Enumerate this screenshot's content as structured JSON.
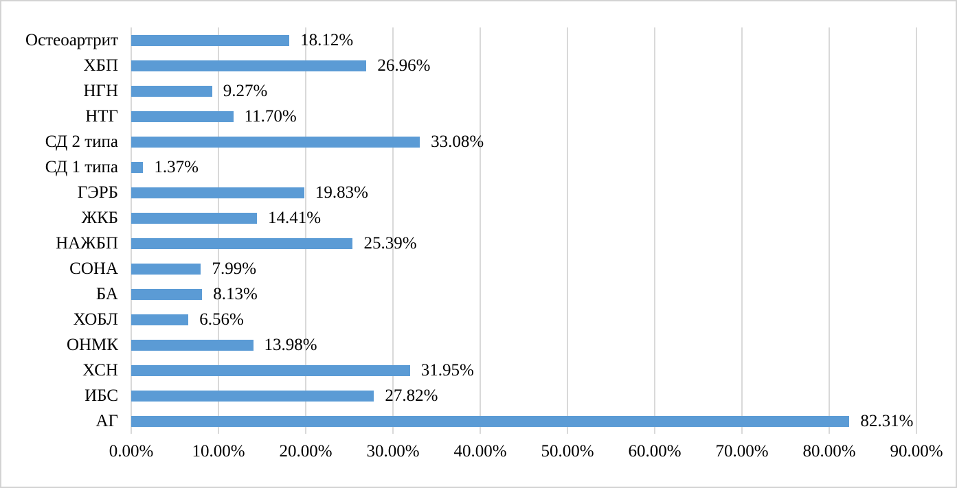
{
  "chart_data": {
    "type": "bar",
    "orientation": "horizontal",
    "title": "",
    "xlabel": "",
    "ylabel": "",
    "categories_order": "top-to-bottom",
    "categories": [
      "Остеоартрит",
      "ХБП",
      "НГН",
      "НТГ",
      "СД 2 типа",
      "СД 1 типа",
      "ГЭРБ",
      "ЖКБ",
      "НАЖБП",
      "СОНА",
      "БА",
      "ХОБЛ",
      "ОНМК",
      "ХСН",
      "ИБС",
      "АГ"
    ],
    "values": [
      18.12,
      26.96,
      9.27,
      11.7,
      33.08,
      1.37,
      19.83,
      14.41,
      25.39,
      7.99,
      8.13,
      6.56,
      13.98,
      31.95,
      27.82,
      82.31
    ],
    "data_labels": [
      "18.12%",
      "26.96%",
      "9.27%",
      "11.70%",
      "33.08%",
      "1.37%",
      "19.83%",
      "14.41%",
      "25.39%",
      "7.99%",
      "8.13%",
      "6.56%",
      "13.98%",
      "31.95%",
      "27.82%",
      "82.31%"
    ],
    "xlim": [
      0,
      90
    ],
    "x_tick_values": [
      0,
      10,
      20,
      30,
      40,
      50,
      60,
      70,
      80,
      90
    ],
    "x_tick_labels": [
      "0.00%",
      "10.00%",
      "20.00%",
      "30.00%",
      "40.00%",
      "50.00%",
      "60.00%",
      "70.00%",
      "80.00%",
      "90.00%"
    ],
    "grid": "vertical-on",
    "legend": "none",
    "colors": {
      "bar": "#5B9BD5",
      "gridline": "#D9D9D9",
      "border": "#D3D3D3",
      "text": "#000000",
      "background": "#FFFFFF"
    }
  }
}
